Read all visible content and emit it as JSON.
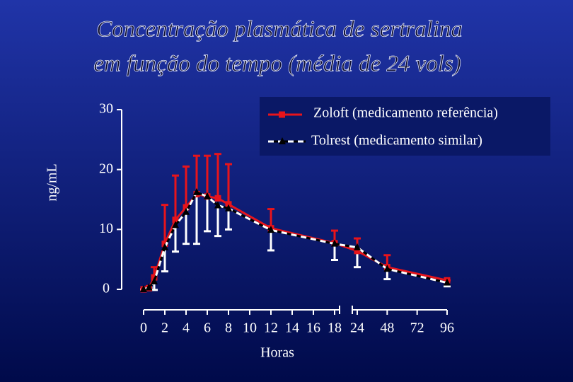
{
  "chart_data": {
    "type": "line",
    "title": "Concentração plasmática de sertralina em função do tempo (média de 24 vols)",
    "title_lines": [
      "Concentração plasmática de sertralina",
      "em função do tempo (média de 24 vols)"
    ],
    "xlabel": "Horas",
    "ylabel": "ng/mL",
    "x": [
      0,
      0.5,
      1,
      2,
      3,
      4,
      5,
      6,
      7,
      8,
      12,
      18,
      24,
      48,
      96
    ],
    "xlim": [
      0,
      96
    ],
    "xticks": [
      0,
      2,
      4,
      6,
      8,
      10,
      12,
      14,
      16,
      18,
      24,
      48,
      72,
      96
    ],
    "xbreak": [
      18,
      24
    ],
    "ylim": [
      0,
      30
    ],
    "yticks": [
      0,
      10,
      20,
      30
    ],
    "legend": "upper right",
    "series": [
      {
        "name": "Zoloft (medicamento referência)",
        "color": "#e8141b",
        "marker": "square",
        "dash": false,
        "error_side": "up",
        "values": [
          0,
          0.2,
          2.0,
          7.6,
          11.6,
          13.7,
          15.9,
          15.5,
          15.2,
          14.2,
          10.2,
          7.7,
          6.4,
          3.7,
          1.5
        ],
        "errors": [
          0,
          0,
          1.7,
          6.5,
          7.4,
          6.8,
          6.4,
          6.8,
          7.4,
          6.7,
          3.2,
          2.1,
          2.1,
          2.0,
          0
        ]
      },
      {
        "name": "Tolrest (medicamento similar)",
        "color": "#000000",
        "marker": "triangle",
        "dash": true,
        "error_side": "down",
        "values": [
          0,
          0.3,
          1.3,
          7.0,
          10.7,
          12.9,
          16.2,
          15.5,
          14.0,
          13.5,
          9.9,
          7.6,
          7.0,
          3.4,
          1.1
        ],
        "errors": [
          0,
          0,
          1.4,
          4.0,
          4.4,
          5.3,
          8.6,
          5.8,
          5.1,
          3.5,
          3.4,
          2.7,
          3.3,
          1.7,
          0.6
        ]
      }
    ]
  }
}
